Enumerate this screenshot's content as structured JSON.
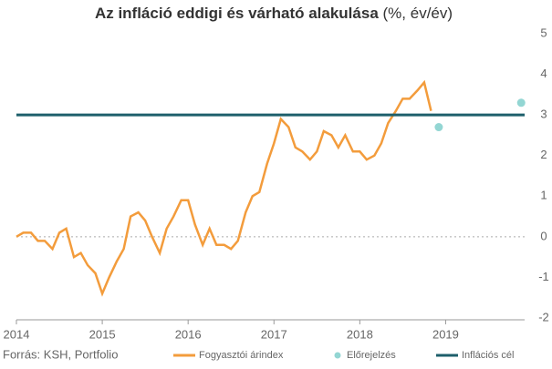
{
  "chart_data": {
    "type": "line",
    "title": "Az infláció eddigi és várható alakulása",
    "title_suffix": "(%, év/év)",
    "source": "Forrás: KSH, Portfolio",
    "xlim": [
      2014,
      2019.92
    ],
    "xticks": [
      2014,
      2015,
      2016,
      2017,
      2018,
      2019
    ],
    "ylim": [
      -2,
      5
    ],
    "yticks": [
      -2,
      -1,
      0,
      1,
      2,
      3,
      4,
      5
    ],
    "y_axis_side": "right",
    "zero_line": true,
    "series": [
      {
        "name": "Fogyasztói árindex",
        "color": "#f39c3c",
        "kind": "line",
        "x": [
          2014,
          2014.08,
          2014.17,
          2014.25,
          2014.33,
          2014.42,
          2014.5,
          2014.58,
          2014.67,
          2014.75,
          2014.83,
          2014.92,
          2015,
          2015.08,
          2015.17,
          2015.25,
          2015.33,
          2015.42,
          2015.5,
          2015.58,
          2015.67,
          2015.75,
          2015.83,
          2015.92,
          2016,
          2016.08,
          2016.17,
          2016.25,
          2016.33,
          2016.42,
          2016.5,
          2016.58,
          2016.67,
          2016.75,
          2016.83,
          2016.92,
          2017,
          2017.08,
          2017.17,
          2017.25,
          2017.33,
          2017.42,
          2017.5,
          2017.58,
          2017.67,
          2017.75,
          2017.83,
          2017.92,
          2018,
          2018.08,
          2018.17,
          2018.25,
          2018.33,
          2018.42,
          2018.5,
          2018.58,
          2018.67,
          2018.75,
          2018.83
        ],
        "values": [
          0,
          0.1,
          0.1,
          -0.1,
          -0.1,
          -0.3,
          0.1,
          0.2,
          -0.5,
          -0.4,
          -0.7,
          -0.9,
          -1.4,
          -1.0,
          -0.6,
          -0.3,
          0.5,
          0.6,
          0.4,
          0,
          -0.4,
          0.2,
          0.5,
          0.9,
          0.9,
          0.3,
          -0.2,
          0.2,
          -0.2,
          -0.2,
          -0.3,
          -0.1,
          0.6,
          1.0,
          1.1,
          1.8,
          2.3,
          2.9,
          2.7,
          2.2,
          2.1,
          1.9,
          2.1,
          2.6,
          2.5,
          2.2,
          2.5,
          2.1,
          2.1,
          1.9,
          2.0,
          2.3,
          2.8,
          3.1,
          3.4,
          3.4,
          3.6,
          3.8,
          3.1
        ]
      },
      {
        "name": "Előrejelzés",
        "color": "#93d6d3",
        "kind": "scatter",
        "x": [
          2018.92,
          2019.88
        ],
        "values": [
          2.7,
          3.3
        ]
      },
      {
        "name": "Inflációs cél",
        "color": "#1d5f6b",
        "kind": "hline",
        "values": [
          3
        ]
      }
    ]
  }
}
